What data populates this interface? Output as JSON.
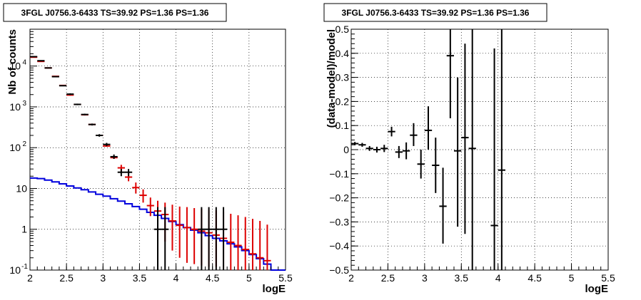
{
  "chart_data": [
    {
      "type": "line",
      "title": "3FGL J0756.3-6433 TS=39.92 PS=1.36 PS=1.36",
      "xlabel": "logE",
      "ylabel": "Nb of counts",
      "xlim": [
        2,
        5.5
      ],
      "ylim": [
        0.1,
        80000
      ],
      "log_y": true,
      "grid": true,
      "x_ticks": [
        "2",
        "2.5",
        "3",
        "3.5",
        "4",
        "4.5",
        "5",
        "5.5"
      ],
      "y_ticks": [
        {
          "base": "10",
          "exp": "-1"
        },
        {
          "base": "1",
          "exp": ""
        },
        {
          "base": "10",
          "exp": ""
        },
        {
          "base": "10",
          "exp": "2"
        },
        {
          "base": "10",
          "exp": "3"
        },
        {
          "base": "10",
          "exp": "4"
        }
      ],
      "colors": {
        "data": "#000000",
        "model": "#dd0000",
        "background": "#0000dd"
      },
      "bin_width": 0.1,
      "data_points": [
        {
          "x": 2.05,
          "y": 17000,
          "lo": 16800,
          "hi": 17200
        },
        {
          "x": 2.15,
          "y": 13500,
          "lo": 13300,
          "hi": 13700
        },
        {
          "x": 2.25,
          "y": 9000,
          "lo": 8850,
          "hi": 9150
        },
        {
          "x": 2.35,
          "y": 5500,
          "lo": 5400,
          "hi": 5600
        },
        {
          "x": 2.45,
          "y": 3300,
          "lo": 3250,
          "hi": 3350
        },
        {
          "x": 2.55,
          "y": 2050,
          "lo": 1950,
          "hi": 2150
        },
        {
          "x": 2.65,
          "y": 1150,
          "lo": 1100,
          "hi": 1200
        },
        {
          "x": 2.75,
          "y": 650,
          "lo": 620,
          "hi": 680
        },
        {
          "x": 2.85,
          "y": 370,
          "lo": 350,
          "hi": 390
        },
        {
          "x": 2.95,
          "y": 200,
          "lo": 186,
          "hi": 214
        },
        {
          "x": 3.05,
          "y": 120,
          "lo": 110,
          "hi": 131
        },
        {
          "x": 3.15,
          "y": 60,
          "lo": 53,
          "hi": 68
        },
        {
          "x": 3.25,
          "y": 25,
          "lo": 20,
          "hi": 30
        },
        {
          "x": 3.35,
          "y": 25,
          "lo": 20,
          "hi": 30
        },
        {
          "x": 3.75,
          "y": 1,
          "lo": 0.1,
          "hi": 3.5
        },
        {
          "x": 3.85,
          "y": 1,
          "lo": 0.1,
          "hi": 3.5
        },
        {
          "x": 4.35,
          "y": 1,
          "lo": 0.1,
          "hi": 3.5
        },
        {
          "x": 4.45,
          "y": 1,
          "lo": 0.1,
          "hi": 3.5
        },
        {
          "x": 4.55,
          "y": 1,
          "lo": 0.1,
          "hi": 3.5
        },
        {
          "x": 4.65,
          "y": 1,
          "lo": 0.1,
          "hi": 3.5
        }
      ],
      "model_points": [
        {
          "x": 2.05,
          "y": 16500
        },
        {
          "x": 2.15,
          "y": 13000
        },
        {
          "x": 2.25,
          "y": 9000
        },
        {
          "x": 2.35,
          "y": 5600
        },
        {
          "x": 2.45,
          "y": 3350
        },
        {
          "x": 2.55,
          "y": 1950
        },
        {
          "x": 2.65,
          "y": 1150
        },
        {
          "x": 2.75,
          "y": 640
        },
        {
          "x": 2.85,
          "y": 370
        },
        {
          "x": 2.95,
          "y": 200
        },
        {
          "x": 3.05,
          "y": 110,
          "lo": 105,
          "hi": 116
        },
        {
          "x": 3.15,
          "y": 57,
          "lo": 53,
          "hi": 62
        },
        {
          "x": 3.25,
          "y": 32,
          "lo": 26,
          "hi": 38
        },
        {
          "x": 3.35,
          "y": 19,
          "lo": 15,
          "hi": 24
        },
        {
          "x": 3.45,
          "y": 10.5,
          "lo": 7.5,
          "hi": 14
        },
        {
          "x": 3.55,
          "y": 6.8,
          "lo": 4.5,
          "hi": 9.5
        },
        {
          "x": 3.65,
          "y": 3.8,
          "lo": 2.1,
          "hi": 6
        },
        {
          "x": 3.75,
          "y": 2.8,
          "lo": 1.2,
          "hi": 5
        },
        {
          "x": 3.85,
          "y": 2.3,
          "lo": 0.5,
          "hi": 4.5
        },
        {
          "x": 3.95,
          "y": 1.6,
          "lo": 0.3,
          "hi": 4
        },
        {
          "x": 4.05,
          "y": 1.25,
          "lo": 0.2,
          "hi": 3.6
        },
        {
          "x": 4.15,
          "y": 1.1,
          "lo": 0.15,
          "hi": 3.5
        },
        {
          "x": 4.25,
          "y": 1.0,
          "lo": 0.14,
          "hi": 3.3
        },
        {
          "x": 4.35,
          "y": 0.9,
          "lo": 0.13,
          "hi": 3.1
        },
        {
          "x": 4.45,
          "y": 0.82,
          "lo": 0.12,
          "hi": 3.0
        },
        {
          "x": 4.55,
          "y": 0.72,
          "lo": 0.12,
          "hi": 2.9
        },
        {
          "x": 4.65,
          "y": 0.6,
          "lo": 0.11,
          "hi": 2.7
        },
        {
          "x": 4.75,
          "y": 0.48,
          "lo": 0.1,
          "hi": 2.4
        },
        {
          "x": 4.85,
          "y": 0.4,
          "lo": 0.1,
          "hi": 2.2
        },
        {
          "x": 4.95,
          "y": 0.32,
          "lo": 0.1,
          "hi": 2.0
        },
        {
          "x": 5.05,
          "y": 0.25,
          "lo": 0.1,
          "hi": 1.8
        },
        {
          "x": 5.15,
          "y": 0.2,
          "lo": 0.1,
          "hi": 1.6
        },
        {
          "x": 5.25,
          "y": 0.17,
          "lo": 0.1,
          "hi": 1.3
        }
      ],
      "background_step": {
        "edges": [
          2.0,
          2.1,
          2.2,
          2.3,
          2.4,
          2.5,
          2.6,
          2.7,
          2.8,
          2.9,
          3.0,
          3.1,
          3.2,
          3.3,
          3.4,
          3.5,
          3.6,
          3.7,
          3.8,
          3.9,
          4.0,
          4.1,
          4.2,
          4.3,
          4.4,
          4.5,
          4.6,
          4.7,
          4.8,
          4.9,
          5.0,
          5.1,
          5.2,
          5.3,
          5.4,
          5.5
        ],
        "values": [
          18,
          17.5,
          16,
          14.5,
          13,
          11.5,
          10.3,
          9.3,
          8.2,
          7.2,
          6.5,
          5.6,
          4.9,
          4.2,
          3.6,
          3.1,
          2.6,
          2.2,
          1.85,
          1.55,
          1.3,
          1.1,
          0.95,
          0.82,
          0.7,
          0.6,
          0.52,
          0.44,
          0.37,
          0.3,
          0.24,
          0.19,
          0.14,
          0.1,
          0.1
        ]
      }
    },
    {
      "type": "scatter",
      "title": "3FGL J0756.3-6433 TS=39.92 PS=1.36 PS=1.36",
      "xlabel": "logE",
      "ylabel": "(data-model)/model",
      "xlim": [
        2,
        5.5
      ],
      "ylim": [
        -0.5,
        0.5
      ],
      "grid": true,
      "x_ticks": [
        "2",
        "2.5",
        "3",
        "3.5",
        "4",
        "4.5",
        "5",
        "5.5"
      ],
      "y_ticks": [
        "−0.5",
        "−0.4",
        "−0.3",
        "−0.2",
        "−0.1",
        "0",
        "0.1",
        "0.2",
        "0.3",
        "0.4",
        "0.5"
      ],
      "y_tick_values": [
        -0.5,
        -0.4,
        -0.3,
        -0.2,
        -0.1,
        0,
        0.1,
        0.2,
        0.3,
        0.4,
        0.5
      ],
      "bin_width": 0.1,
      "points": [
        {
          "x": 2.05,
          "y": 0.025,
          "lo": 0.018,
          "hi": 0.032
        },
        {
          "x": 2.15,
          "y": 0.02,
          "lo": 0.012,
          "hi": 0.028
        },
        {
          "x": 2.25,
          "y": 0.005,
          "lo": -0.005,
          "hi": 0.015
        },
        {
          "x": 2.35,
          "y": 0.0,
          "lo": -0.012,
          "hi": 0.012
        },
        {
          "x": 2.45,
          "y": 0.005,
          "lo": -0.01,
          "hi": 0.02
        },
        {
          "x": 2.55,
          "y": 0.075,
          "lo": 0.055,
          "hi": 0.095
        },
        {
          "x": 2.65,
          "y": -0.01,
          "lo": -0.035,
          "hi": 0.015
        },
        {
          "x": 2.75,
          "y": -0.005,
          "lo": -0.04,
          "hi": 0.03
        },
        {
          "x": 2.85,
          "y": 0.06,
          "lo": 0.015,
          "hi": 0.11
        },
        {
          "x": 2.95,
          "y": -0.06,
          "lo": -0.12,
          "hi": 0.0
        },
        {
          "x": 3.05,
          "y": 0.08,
          "lo": 0.0,
          "hi": 0.18
        },
        {
          "x": 3.15,
          "y": -0.065,
          "lo": -0.18,
          "hi": 0.05
        },
        {
          "x": 3.25,
          "y": -0.235,
          "lo": -0.39,
          "hi": -0.075
        },
        {
          "x": 3.35,
          "y": 0.39,
          "lo": 0.13,
          "hi": 0.5
        },
        {
          "x": 3.45,
          "y": -0.005,
          "lo": -0.32,
          "hi": 0.3
        },
        {
          "x": 3.55,
          "y": 0.05,
          "lo": -0.35,
          "hi": 0.44
        },
        {
          "x": 3.65,
          "y": 0.005,
          "lo": -0.5,
          "hi": 0.5
        },
        {
          "x": 3.95,
          "y": -0.315,
          "lo": -0.5,
          "hi": 0.42
        },
        {
          "x": 4.05,
          "y": -0.085,
          "lo": -0.5,
          "hi": 0.5
        }
      ]
    }
  ]
}
